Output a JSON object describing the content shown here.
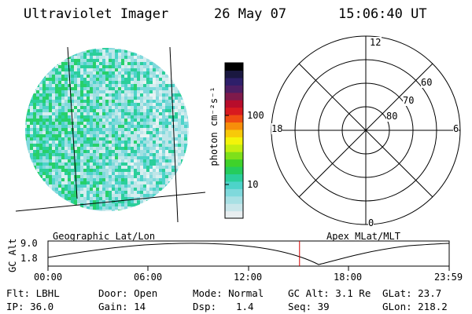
{
  "header": {
    "instrument": "Ultraviolet Imager",
    "date": "26 May 07",
    "time": "15:06:40 UT"
  },
  "colorbar": {
    "unit_label": "photon cm⁻²s⁻¹",
    "ticks": [
      "100",
      "10"
    ],
    "colors": [
      "#e8eef0",
      "#c9e6ea",
      "#a8e0e4",
      "#7fd9dc",
      "#4dd3c9",
      "#2bcf9a",
      "#25cc5c",
      "#3fd22a",
      "#7ee01a",
      "#c4ee10",
      "#f3f40a",
      "#f7c909",
      "#f78e0a",
      "#ef4d12",
      "#d81a1f",
      "#b80d2b",
      "#7f1a4b",
      "#4e1e63",
      "#2e1f6a",
      "#1a1840",
      "#000000"
    ]
  },
  "polar": {
    "mlt_labels": {
      "top": "12",
      "left": "18",
      "right": "6",
      "bottom": "0"
    },
    "lat_labels": [
      "60",
      "70",
      "80"
    ]
  },
  "timeline": {
    "axis_label": "GC Alt",
    "left_caption": "Geographic Lat/Lon",
    "right_caption": "Apex MLat/MLT",
    "y_ticks": [
      "9.0",
      "1.8"
    ],
    "x_ticks": [
      "00:00",
      "06:00",
      "12:00",
      "18:00",
      "23:59"
    ],
    "current_time_fraction": 0.627
  },
  "footer": {
    "filter": "Flt: LBHL",
    "door": "Door: Open",
    "mode": "Mode: Normal",
    "gc_alt": "GC Alt: 3.1 Re",
    "glat": "GLat: 23.7",
    "ip": "IP: 36.0",
    "gain": "Gain: 14",
    "dsp_label": "Dsp:",
    "dsp_value": "1.4",
    "seq": "Seq: 39",
    "glon": "GLon: 218.2"
  }
}
